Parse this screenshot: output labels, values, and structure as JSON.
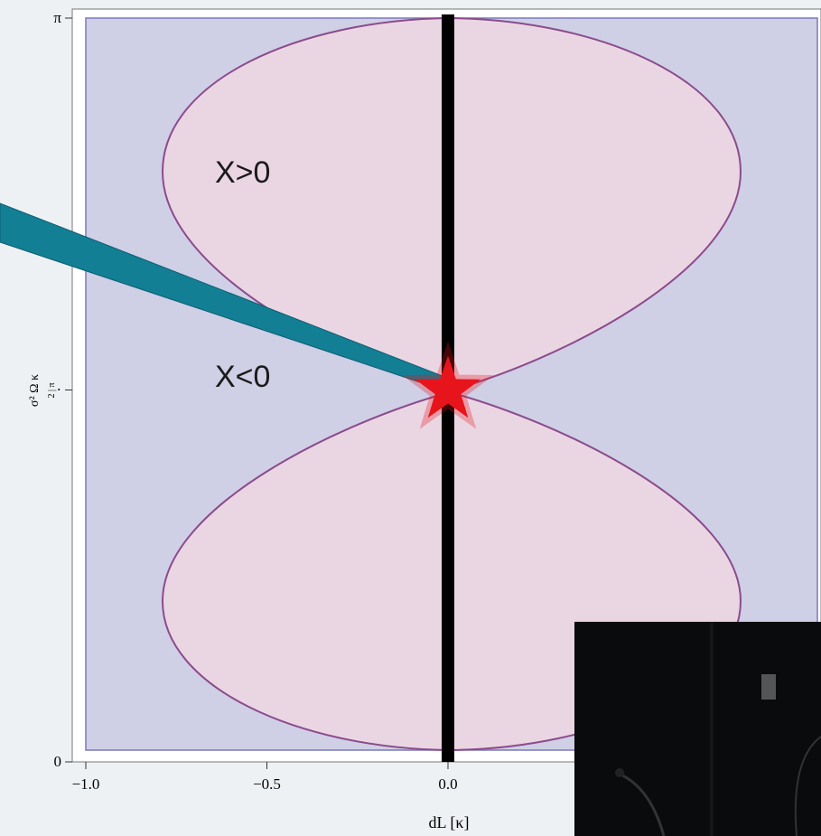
{
  "chart_data": {
    "type": "region",
    "xlabel": "dL [κ]",
    "ylabel": [
      "σ² Ω κ",
      "2 | π"
    ],
    "xlim": [
      -1,
      1.02
    ],
    "ylim": [
      0,
      3.1416
    ],
    "xticks": [
      {
        "value": -1,
        "label": "−1.0"
      },
      {
        "value": -0.5,
        "label": "−0.5"
      },
      {
        "value": 0,
        "label": "0.0"
      }
    ],
    "yticks": [
      0,
      {
        "value": 1.5708,
        "label": "·"
      },
      {
        "value": 3.1416,
        "label": "π"
      }
    ],
    "annotations": [
      "X>0",
      "X<0"
    ],
    "vline": 0,
    "points": {
      "x": [
        0
      ],
      "y": [
        1.5708
      ],
      "color": "#e8141c"
    },
    "region_color": "#cfcfe6",
    "lobe_color": "#ead6e3",
    "boundary_color": "#8c4b8c"
  }
}
